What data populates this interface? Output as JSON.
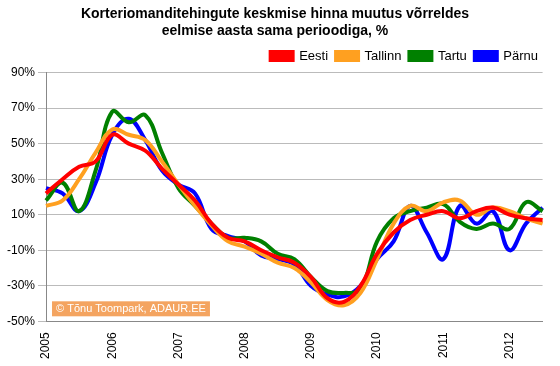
{
  "chart_data": {
    "type": "line",
    "title": [
      "Korteriomanditehingute keskmise hinna muutus võrreldes",
      "eelmise aasta sama perioodiga, %"
    ],
    "annotation": "© Tõnu Toompark, ADAUR.EE",
    "categories": [
      "2005",
      null,
      null,
      null,
      "2006",
      null,
      null,
      null,
      "2007",
      null,
      null,
      null,
      "2008",
      null,
      null,
      null,
      "2009",
      null,
      null,
      null,
      "2010",
      null,
      null,
      null,
      "2011",
      null,
      null,
      null,
      "2012",
      null,
      null
    ],
    "series": [
      {
        "name": "Eesti",
        "color": "#ff0000",
        "values": [
          22,
          30,
          37,
          40,
          55,
          50,
          46,
          36,
          27,
          18,
          5,
          -3,
          -5,
          -10,
          -14,
          -17,
          -25,
          -37,
          -39,
          -30,
          -12,
          0,
          7,
          10,
          12,
          8,
          12,
          14,
          10,
          8,
          7
        ]
      },
      {
        "name": "Tallinn",
        "color": "#ffa020",
        "values": [
          15,
          18,
          30,
          45,
          58,
          55,
          52,
          40,
          27,
          15,
          4,
          -5,
          -8,
          -12,
          -17,
          -20,
          -28,
          -38,
          -41,
          -34,
          -15,
          5,
          15,
          12,
          17,
          18,
          10,
          14,
          12,
          8,
          5
        ]
      },
      {
        "name": "Tartu",
        "color": "#008000",
        "values": [
          18,
          28,
          12,
          35,
          68,
          62,
          66,
          45,
          25,
          15,
          5,
          -3,
          -3,
          -5,
          -12,
          -15,
          -25,
          -33,
          -34,
          -32,
          -5,
          8,
          12,
          14,
          16,
          6,
          2,
          5,
          2,
          17,
          12
        ]
      },
      {
        "name": "Pärnu",
        "color": "#0000ff",
        "values": [
          25,
          22,
          12,
          28,
          55,
          64,
          52,
          35,
          27,
          22,
          2,
          -2,
          -5,
          -13,
          -15,
          -18,
          -30,
          -35,
          -36,
          -30,
          -15,
          -5,
          15,
          0,
          -15,
          15,
          5,
          12,
          -10,
          5,
          14
        ]
      }
    ],
    "ylim": [
      -50,
      90
    ],
    "yticks": [
      {
        "value": -50,
        "label": "-50%"
      },
      {
        "value": -30,
        "label": "-30%"
      },
      {
        "value": -10,
        "label": "-10%"
      },
      {
        "value": 10,
        "label": "10%"
      },
      {
        "value": 30,
        "label": "30%"
      },
      {
        "value": 50,
        "label": "50%"
      },
      {
        "value": 70,
        "label": "70%"
      },
      {
        "value": 90,
        "label": "90%"
      }
    ],
    "grid": true,
    "legend": "top"
  }
}
